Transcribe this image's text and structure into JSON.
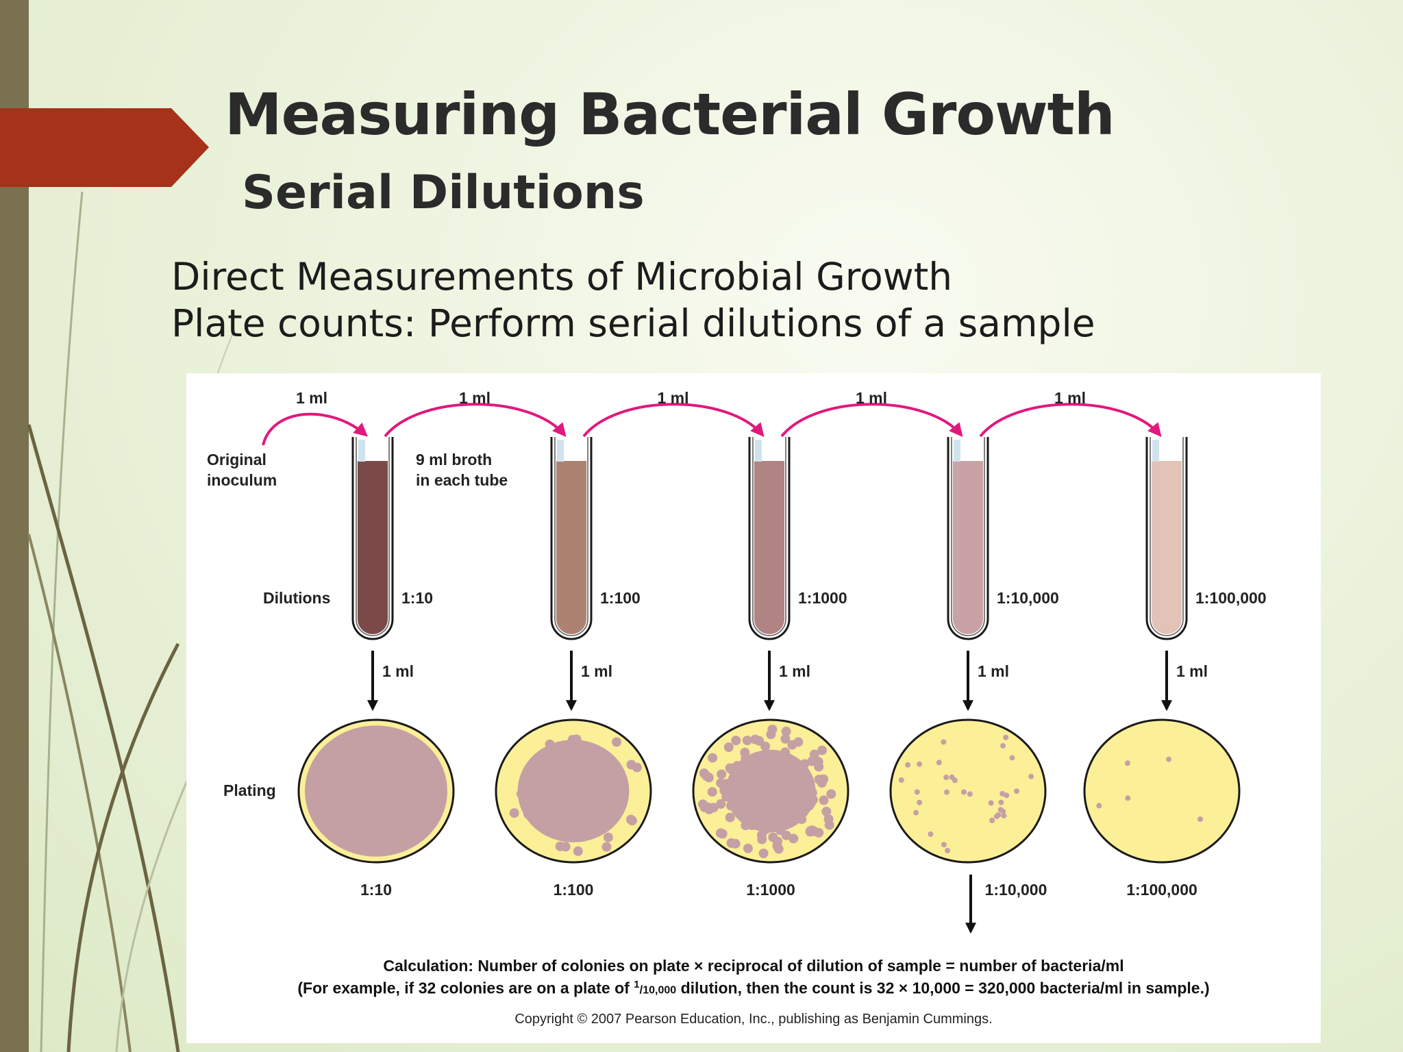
{
  "title": "Measuring Bacterial Growth",
  "subtitle": "Serial Dilutions",
  "bullets": [
    "Direct Measurements of Microbial Growth",
    "Plate counts: Perform serial dilutions of a sample"
  ],
  "figure": {
    "transfer_label": "1 ml",
    "original_label_line1": "Original",
    "original_label_line2": "inoculum",
    "broth_label_line1": "9 ml broth",
    "broth_label_line2": "in each tube",
    "dilutions_label": "Dilutions",
    "plating_label": "Plating",
    "tubes": [
      {
        "dilution": "1:10",
        "color": "#7b4a48"
      },
      {
        "dilution": "1:100",
        "color": "#ad8271"
      },
      {
        "dilution": "1:1000",
        "color": "#b08483"
      },
      {
        "dilution": "1:10,000",
        "color": "#c9a2a6"
      },
      {
        "dilution": "1:100,000",
        "color": "#e3c3b8"
      }
    ],
    "plates": [
      {
        "dilution": "1:10"
      },
      {
        "dilution": "1:100"
      },
      {
        "dilution": "1:1000"
      },
      {
        "dilution": "1:10,000"
      },
      {
        "dilution": "1:100,000"
      }
    ],
    "calculation_line1": "Calculation: Number of colonies on plate × reciprocal of dilution of sample = number of bacteria/ml",
    "calculation_line2_before": "(For example, if 32 colonies are on a plate of ",
    "calculation_frac_num": "1",
    "calculation_frac_den": "10,000",
    "calculation_line2_after": " dilution, then the count is 32 × 10,000 = 320,000 bacteria/ml in sample.)",
    "copyright": "Copyright © 2007 Pearson Education, Inc., publishing as Benjamin Cummings."
  },
  "colors": {
    "arrow_magenta": "#e0197d",
    "agar": "#fbef98",
    "colony": "#c4a0a4",
    "banner_red": "#a53219",
    "side_bar": "#7a7150"
  }
}
